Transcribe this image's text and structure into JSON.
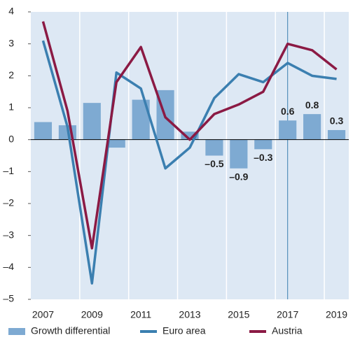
{
  "chart_data": {
    "type": "bar_line",
    "categories": [
      "2007",
      null,
      "2009",
      null,
      "2011",
      null,
      "2013",
      null,
      "2015",
      null,
      "2017",
      null,
      "2019"
    ],
    "series": [
      {
        "name": "Growth differential",
        "type": "bar",
        "color": "#7eaad2",
        "values": [
          0.55,
          0.45,
          1.15,
          -0.25,
          1.25,
          1.55,
          0.25,
          -0.5,
          -0.9,
          -0.3,
          0.6,
          0.8,
          0.3
        ],
        "value_labels": [
          null,
          null,
          null,
          null,
          null,
          null,
          null,
          "–0.5",
          "–0.9",
          "–0.3",
          "0.6",
          "0.8",
          "0.3"
        ]
      },
      {
        "name": "Euro area",
        "type": "line",
        "color": "#3b7fb0",
        "values": [
          3.1,
          0.4,
          -4.5,
          2.1,
          1.6,
          -0.9,
          -0.25,
          1.3,
          2.05,
          1.8,
          2.4,
          2.0,
          1.9
        ]
      },
      {
        "name": "Austria",
        "type": "line",
        "color": "#8b1a44",
        "values": [
          3.7,
          0.9,
          -3.4,
          1.8,
          2.9,
          0.7,
          0.0,
          0.8,
          1.1,
          1.5,
          3.0,
          2.8,
          2.2
        ]
      }
    ],
    "ylim": [
      -5,
      4
    ],
    "yticks": [
      4,
      3,
      2,
      1,
      0,
      {
        "value": -1,
        "label": "–1"
      },
      {
        "value": -2,
        "label": "–2"
      },
      {
        "value": -3,
        "label": "–3"
      },
      {
        "value": -4,
        "label": "–4"
      },
      {
        "value": -5,
        "label": "–5"
      }
    ]
  }
}
